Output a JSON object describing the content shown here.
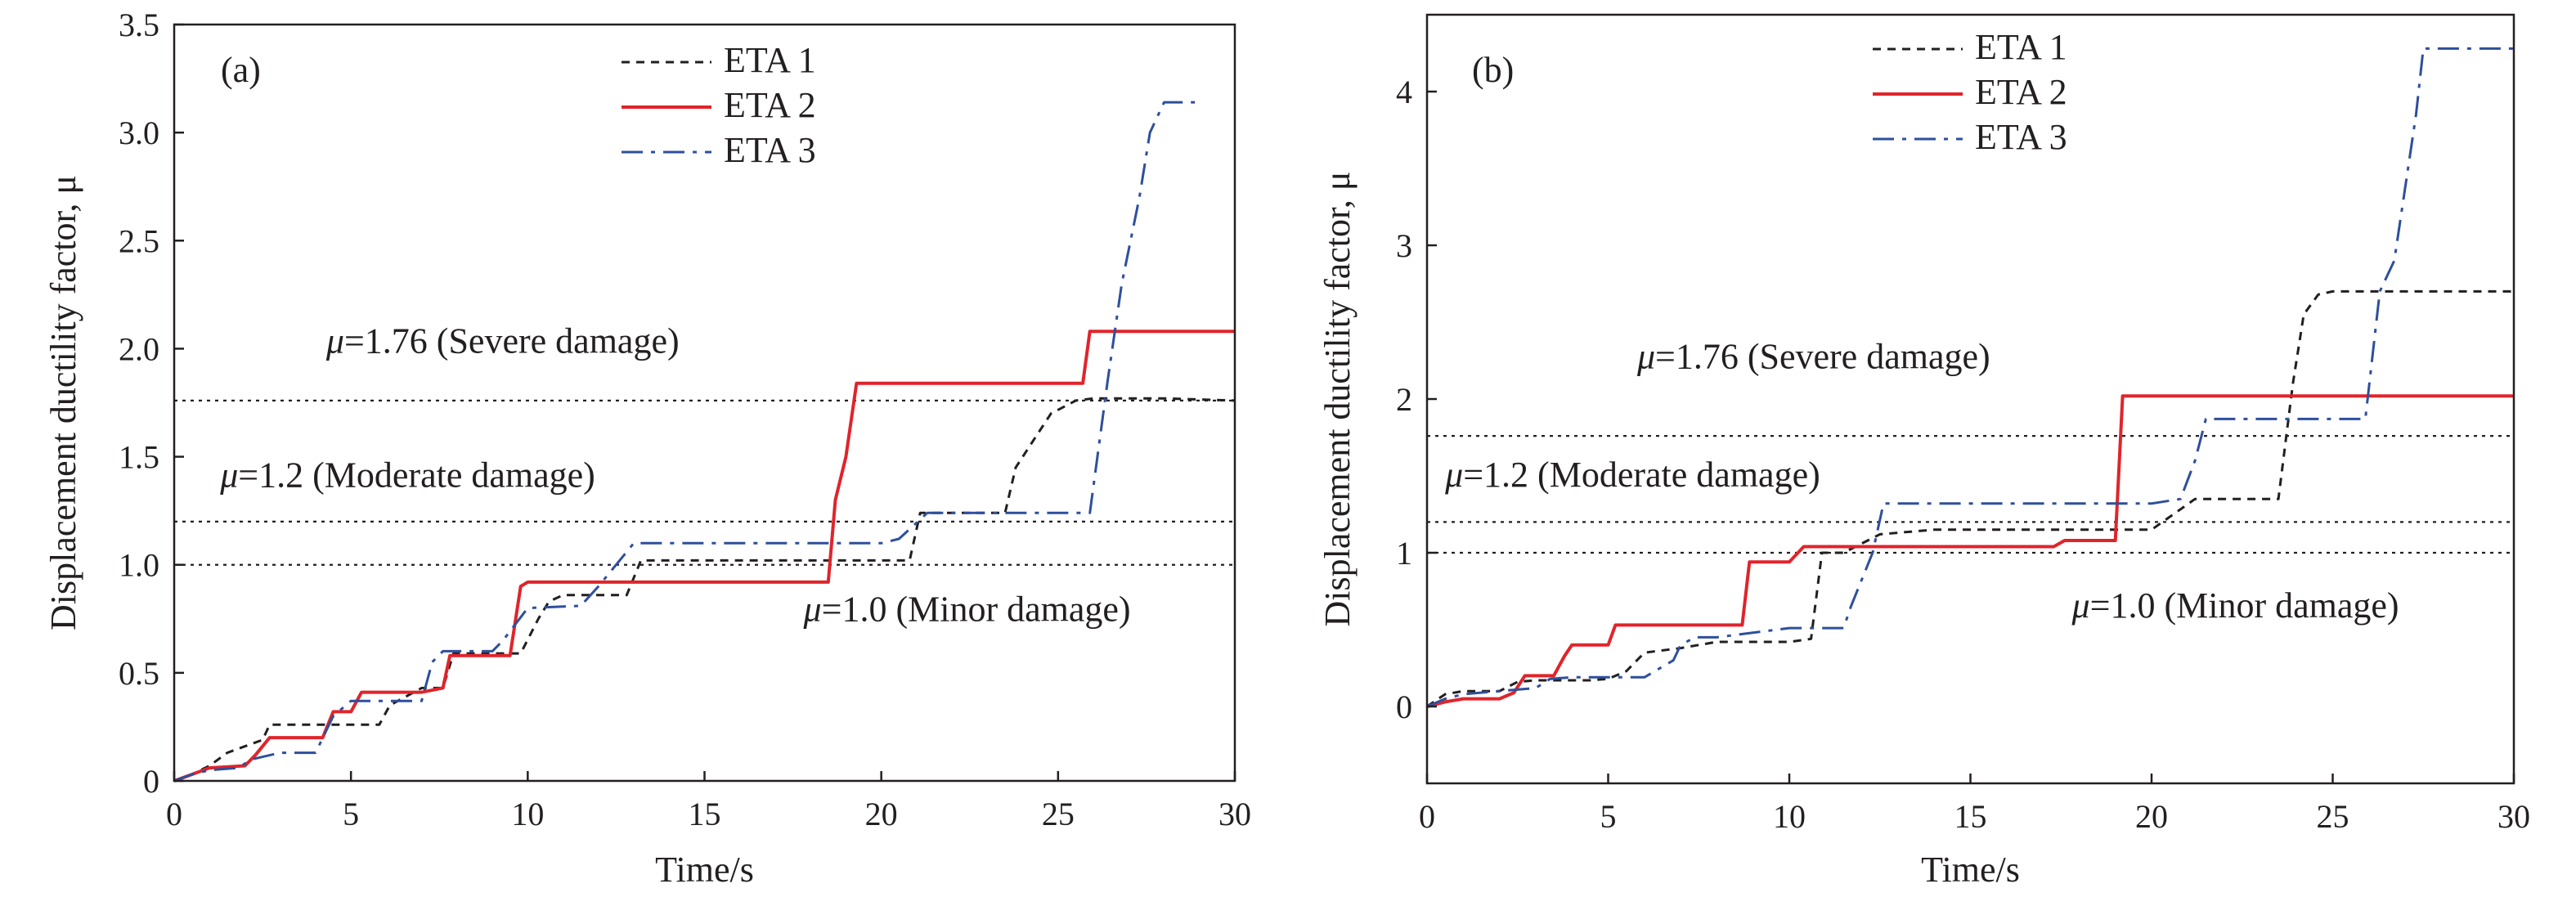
{
  "colors": {
    "eta1": "#231f20",
    "eta2": "#e0242b",
    "eta3": "#2e4f9c",
    "axis": "#231f20"
  },
  "chart_data": [
    {
      "type": "line",
      "panel_label": "(a)",
      "xlabel": "Time/s",
      "ylabel": "Displacement ductility factor, μ",
      "xlim": [
        0,
        30
      ],
      "ylim": [
        0,
        3.5
      ],
      "xticks": [
        0,
        5,
        10,
        15,
        20,
        25,
        30
      ],
      "xtick_labels": [
        "0",
        "5",
        "10",
        "15",
        "20",
        "25",
        "30"
      ],
      "yticks": [
        0,
        0.5,
        1.0,
        1.5,
        2.0,
        2.5,
        3.0,
        3.5
      ],
      "ytick_labels": [
        "0",
        "0.5",
        "1.0",
        "1.5",
        "2.0",
        "2.5",
        "3.0",
        "3.5"
      ],
      "legend_position": "top-center",
      "thresholds": [
        {
          "value": 1.76,
          "mu": "μ",
          "text": "=1.76 (Severe damage)",
          "x": 4.3,
          "y": 1.98
        },
        {
          "value": 1.2,
          "mu": "μ",
          "text": "=1.2 (Moderate damage)",
          "x": 1.3,
          "y": 1.36
        },
        {
          "value": 1.0,
          "mu": "μ",
          "text": "=1.0 (Minor damage)",
          "x": 17.8,
          "y": 0.74
        }
      ],
      "series": [
        {
          "name": "ETA 1",
          "style": "dashed",
          "x": [
            0,
            0.5,
            1.0,
            1.5,
            2.0,
            2.5,
            2.7,
            3.0,
            4.0,
            5.0,
            5.8,
            6.1,
            7.0,
            7.6,
            7.9,
            9.8,
            10.3,
            10.6,
            11.0,
            12.0,
            12.8,
            13.2,
            15.0,
            17.0,
            19.0,
            20.0,
            20.8,
            21.1,
            22.0,
            23.5,
            23.8,
            24.4,
            24.8,
            25.5,
            26.0,
            28.0,
            30.0
          ],
          "y": [
            0,
            0.03,
            0.07,
            0.13,
            0.16,
            0.19,
            0.26,
            0.26,
            0.26,
            0.26,
            0.26,
            0.35,
            0.43,
            0.43,
            0.59,
            0.59,
            0.75,
            0.83,
            0.86,
            0.86,
            0.86,
            1.02,
            1.02,
            1.02,
            1.02,
            1.02,
            1.02,
            1.24,
            1.24,
            1.24,
            1.45,
            1.6,
            1.7,
            1.76,
            1.77,
            1.77,
            1.76
          ]
        },
        {
          "name": "ETA 2",
          "style": "solid",
          "x": [
            0,
            0.5,
            1.0,
            2.0,
            2.3,
            2.7,
            3.0,
            4.2,
            4.5,
            5.0,
            5.3,
            6.0,
            7.0,
            7.6,
            7.8,
            9.5,
            9.8,
            10.0,
            12.0,
            15.0,
            17.0,
            18.5,
            18.7,
            19.0,
            19.3,
            20.0,
            22.0,
            24.0,
            25.7,
            25.9,
            28.0,
            30.0
          ],
          "y": [
            0,
            0.03,
            0.06,
            0.07,
            0.12,
            0.2,
            0.2,
            0.2,
            0.32,
            0.32,
            0.41,
            0.41,
            0.41,
            0.43,
            0.58,
            0.58,
            0.9,
            0.92,
            0.92,
            0.92,
            0.92,
            0.92,
            1.3,
            1.5,
            1.84,
            1.84,
            1.84,
            1.84,
            1.84,
            2.08,
            2.08,
            2.08
          ]
        },
        {
          "name": "ETA 3",
          "style": "dash-dot",
          "x": [
            0,
            0.5,
            1.0,
            1.8,
            2.2,
            3.0,
            4.0,
            4.5,
            5.0,
            6.0,
            7.0,
            7.3,
            7.6,
            8.0,
            9.0,
            9.3,
            10.0,
            11.5,
            12.0,
            12.5,
            13.0,
            15.0,
            18.0,
            20.0,
            20.5,
            21.3,
            21.7,
            23.0,
            25.5,
            25.9,
            26.4,
            26.8,
            27.3,
            27.6,
            28.0,
            29.0
          ],
          "y": [
            0,
            0.03,
            0.05,
            0.06,
            0.1,
            0.13,
            0.13,
            0.3,
            0.37,
            0.37,
            0.37,
            0.55,
            0.6,
            0.6,
            0.6,
            0.65,
            0.8,
            0.81,
            0.9,
            1.0,
            1.1,
            1.1,
            1.1,
            1.1,
            1.12,
            1.24,
            1.24,
            1.24,
            1.24,
            1.24,
            1.85,
            2.3,
            2.7,
            3.0,
            3.14,
            3.14
          ]
        }
      ]
    },
    {
      "type": "line",
      "panel_label": "(b)",
      "xlabel": "Time/s",
      "ylabel": "Displacement ductility factor, μ",
      "xlim": [
        0,
        30
      ],
      "ylim": [
        -0.5,
        4.5
      ],
      "xticks": [
        0,
        5,
        10,
        15,
        20,
        25,
        30
      ],
      "xtick_labels": [
        "0",
        "5",
        "10",
        "15",
        "20",
        "25",
        "30"
      ],
      "yticks": [
        0,
        1,
        2,
        3,
        4
      ],
      "ytick_labels": [
        "0",
        "1",
        "2",
        "3",
        "4"
      ],
      "legend_position": "top-center",
      "thresholds": [
        {
          "value": 1.76,
          "mu": "μ",
          "text": "=1.76 (Severe damage)",
          "x": 5.8,
          "y": 2.2
        },
        {
          "value": 1.2,
          "mu": "μ",
          "text": "=1.2 (Moderate damage)",
          "x": 0.5,
          "y": 1.43
        },
        {
          "value": 1.0,
          "mu": "μ",
          "text": "=1.0 (Minor damage)",
          "x": 17.8,
          "y": 0.58
        }
      ],
      "series": [
        {
          "name": "ETA 1",
          "style": "dashed",
          "x": [
            0,
            0.5,
            1.0,
            2.0,
            2.5,
            3.0,
            4.0,
            4.5,
            5.0,
            5.5,
            6.0,
            7.0,
            8.0,
            9.0,
            10.0,
            10.6,
            10.9,
            11.5,
            12.5,
            14.0,
            17.0,
            20.0,
            20.9,
            21.2,
            23.0,
            23.5,
            23.9,
            24.2,
            24.6,
            25.0,
            27.0,
            30.0
          ],
          "y": [
            0,
            0.08,
            0.1,
            0.1,
            0.16,
            0.17,
            0.17,
            0.17,
            0.18,
            0.23,
            0.35,
            0.38,
            0.42,
            0.42,
            0.42,
            0.44,
            1.0,
            1.0,
            1.12,
            1.15,
            1.15,
            1.15,
            1.3,
            1.35,
            1.35,
            1.35,
            2.1,
            2.55,
            2.68,
            2.7,
            2.7,
            2.7
          ]
        },
        {
          "name": "ETA 2",
          "style": "solid",
          "x": [
            0,
            0.5,
            1.0,
            2.0,
            2.4,
            2.7,
            3.0,
            3.5,
            3.8,
            4.0,
            5.0,
            5.2,
            6.0,
            8.0,
            8.7,
            8.9,
            10.0,
            10.4,
            11.0,
            13.0,
            15.0,
            17.3,
            17.6,
            19.0,
            19.2,
            20.0,
            25.0,
            30.0
          ],
          "y": [
            0,
            0.03,
            0.05,
            0.05,
            0.09,
            0.2,
            0.2,
            0.2,
            0.33,
            0.4,
            0.4,
            0.53,
            0.53,
            0.53,
            0.53,
            0.94,
            0.94,
            1.04,
            1.04,
            1.04,
            1.04,
            1.04,
            1.08,
            1.08,
            2.02,
            2.02,
            2.02,
            2.02
          ]
        },
        {
          "name": "ETA 3",
          "style": "dash-dot",
          "x": [
            0,
            0.5,
            1.0,
            2.0,
            3.0,
            3.4,
            4.0,
            5.5,
            6.0,
            6.8,
            7.0,
            7.4,
            8.0,
            10.0,
            11.5,
            11.7,
            12.3,
            12.6,
            13.0,
            15.0,
            18.0,
            20.0,
            20.8,
            21.2,
            21.5,
            22.0,
            24.0,
            25.9,
            26.3,
            26.7,
            27.3,
            27.5,
            28.0,
            30.0
          ],
          "y": [
            0,
            0.05,
            0.08,
            0.1,
            0.12,
            0.18,
            0.19,
            0.19,
            0.19,
            0.3,
            0.4,
            0.45,
            0.45,
            0.51,
            0.51,
            0.65,
            1.0,
            1.32,
            1.32,
            1.32,
            1.32,
            1.32,
            1.35,
            1.6,
            1.87,
            1.87,
            1.87,
            1.87,
            2.7,
            2.9,
            3.85,
            4.28,
            4.28,
            4.28
          ]
        }
      ]
    }
  ]
}
